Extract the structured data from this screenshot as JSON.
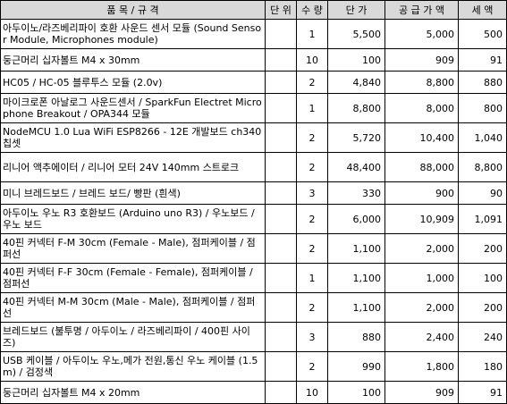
{
  "header": {
    "item": "품 목 / 규 격",
    "unit": "단 위",
    "qty": "수 량",
    "price": "단 가",
    "supply": "공 급 가 액",
    "tax": "세 액"
  },
  "rows": [
    {
      "name": "아두이노/라즈베리파이 호환 사운드 센서 모듈 (Sound Sensor Module, Microphones module)",
      "unit": "",
      "qty": "1",
      "price": "5,500",
      "supply": "5,000",
      "tax": "500"
    },
    {
      "name": "둥근머리 십자볼트 M4 x 30mm",
      "unit": "",
      "qty": "10",
      "price": "100",
      "supply": "909",
      "tax": "91"
    },
    {
      "name": "HC05 / HC-05 블루투스 모듈 (2.0v)",
      "unit": "",
      "qty": "2",
      "price": "4,840",
      "supply": "8,800",
      "tax": "880"
    },
    {
      "name": "마이크로폰 아날로그 사운드센서 / SparkFun Electret Microphone Breakout / OPA344 모듈",
      "unit": "",
      "qty": "1",
      "price": "8,800",
      "supply": "8,000",
      "tax": "800"
    },
    {
      "name": "NodeMCU 1.0 Lua WiFi ESP8266 - 12E 개발보드 ch340칩셋",
      "unit": "",
      "qty": "2",
      "price": "5,720",
      "supply": "10,400",
      "tax": "1,040"
    },
    {
      "name": "리니어 액추에이터 / 리니어 모터 24V 140mm 스트로크",
      "unit": "",
      "qty": "2",
      "price": "48,400",
      "supply": "88,000",
      "tax": "8,800"
    },
    {
      "name": "미니 브레드보드 / 브레드 보드/ 빵판 (흰색)",
      "unit": "",
      "qty": "3",
      "price": "330",
      "supply": "900",
      "tax": "90"
    },
    {
      "name": "아두이노 우노 R3 호환보드 (Arduino uno R3) / 우노보드 / 우노 보드",
      "unit": "",
      "qty": "2",
      "price": "6,000",
      "supply": "10,909",
      "tax": "1,091"
    },
    {
      "name": "40핀 커넥터 F-M 30cm (Female - Male), 점퍼케이블 / 점퍼선",
      "unit": "",
      "qty": "2",
      "price": "1,100",
      "supply": "2,000",
      "tax": "200"
    },
    {
      "name": "40핀 커넥터 F-F 30cm (Female - Female), 점퍼케이블 / 점퍼선",
      "unit": "",
      "qty": "1",
      "price": "1,100",
      "supply": "1,000",
      "tax": "100"
    },
    {
      "name": "40핀 커넥터 M-M 30cm (Male - Male), 점퍼케이블 / 점퍼선",
      "unit": "",
      "qty": "2",
      "price": "1,100",
      "supply": "2,000",
      "tax": "200"
    },
    {
      "name": "브레드보드 (불투명 / 아두이노 / 라즈베리파이 / 400핀 사이즈)",
      "unit": "",
      "qty": "3",
      "price": "880",
      "supply": "2,400",
      "tax": "240"
    },
    {
      "name": "USB 케이블 / 아두이노 우노,메가 전원,통신 우노 케이블 (1.5m) / 검정색",
      "unit": "",
      "qty": "2",
      "price": "990",
      "supply": "1,800",
      "tax": "180"
    },
    {
      "name": "둥근머리 십자볼트 M4 x 20mm",
      "unit": "",
      "qty": "10",
      "price": "100",
      "supply": "909",
      "tax": "91"
    }
  ]
}
